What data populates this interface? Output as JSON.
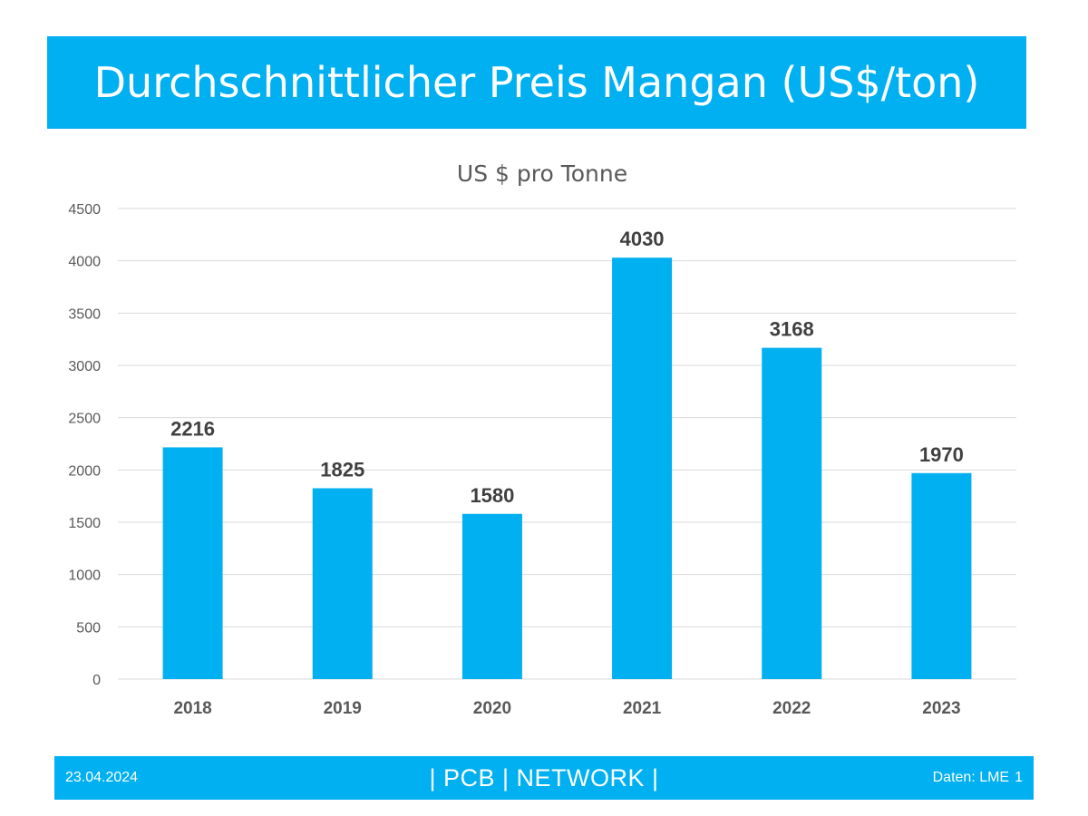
{
  "header": {
    "title": "Durchschnittlicher Preis Mangan (US$/ton)"
  },
  "footer": {
    "date": "23.04.2024",
    "brand": "| PCB | NETWORK |",
    "source": "Daten: LME",
    "page_number": "1"
  },
  "colors": {
    "accent": "#00b0f0",
    "bar": "#00b0f0",
    "axis_text": "#595959",
    "label_text": "#404040",
    "grid": "#d9d9d9"
  },
  "chart_data": {
    "type": "bar",
    "title": "US $ pro Tonne",
    "xlabel": "",
    "ylabel": "",
    "categories": [
      "2018",
      "2019",
      "2020",
      "2021",
      "2022",
      "2023"
    ],
    "values": [
      2216,
      1825,
      1580,
      4030,
      3168,
      1970
    ],
    "data_labels": [
      "2216",
      "1825",
      "1580",
      "4030",
      "3168",
      "1970"
    ],
    "ylim": [
      0,
      4500
    ],
    "yticks": [
      0,
      500,
      1000,
      1500,
      2000,
      2500,
      3000,
      3500,
      4000,
      4500
    ],
    "grid": true,
    "legend": "none"
  }
}
